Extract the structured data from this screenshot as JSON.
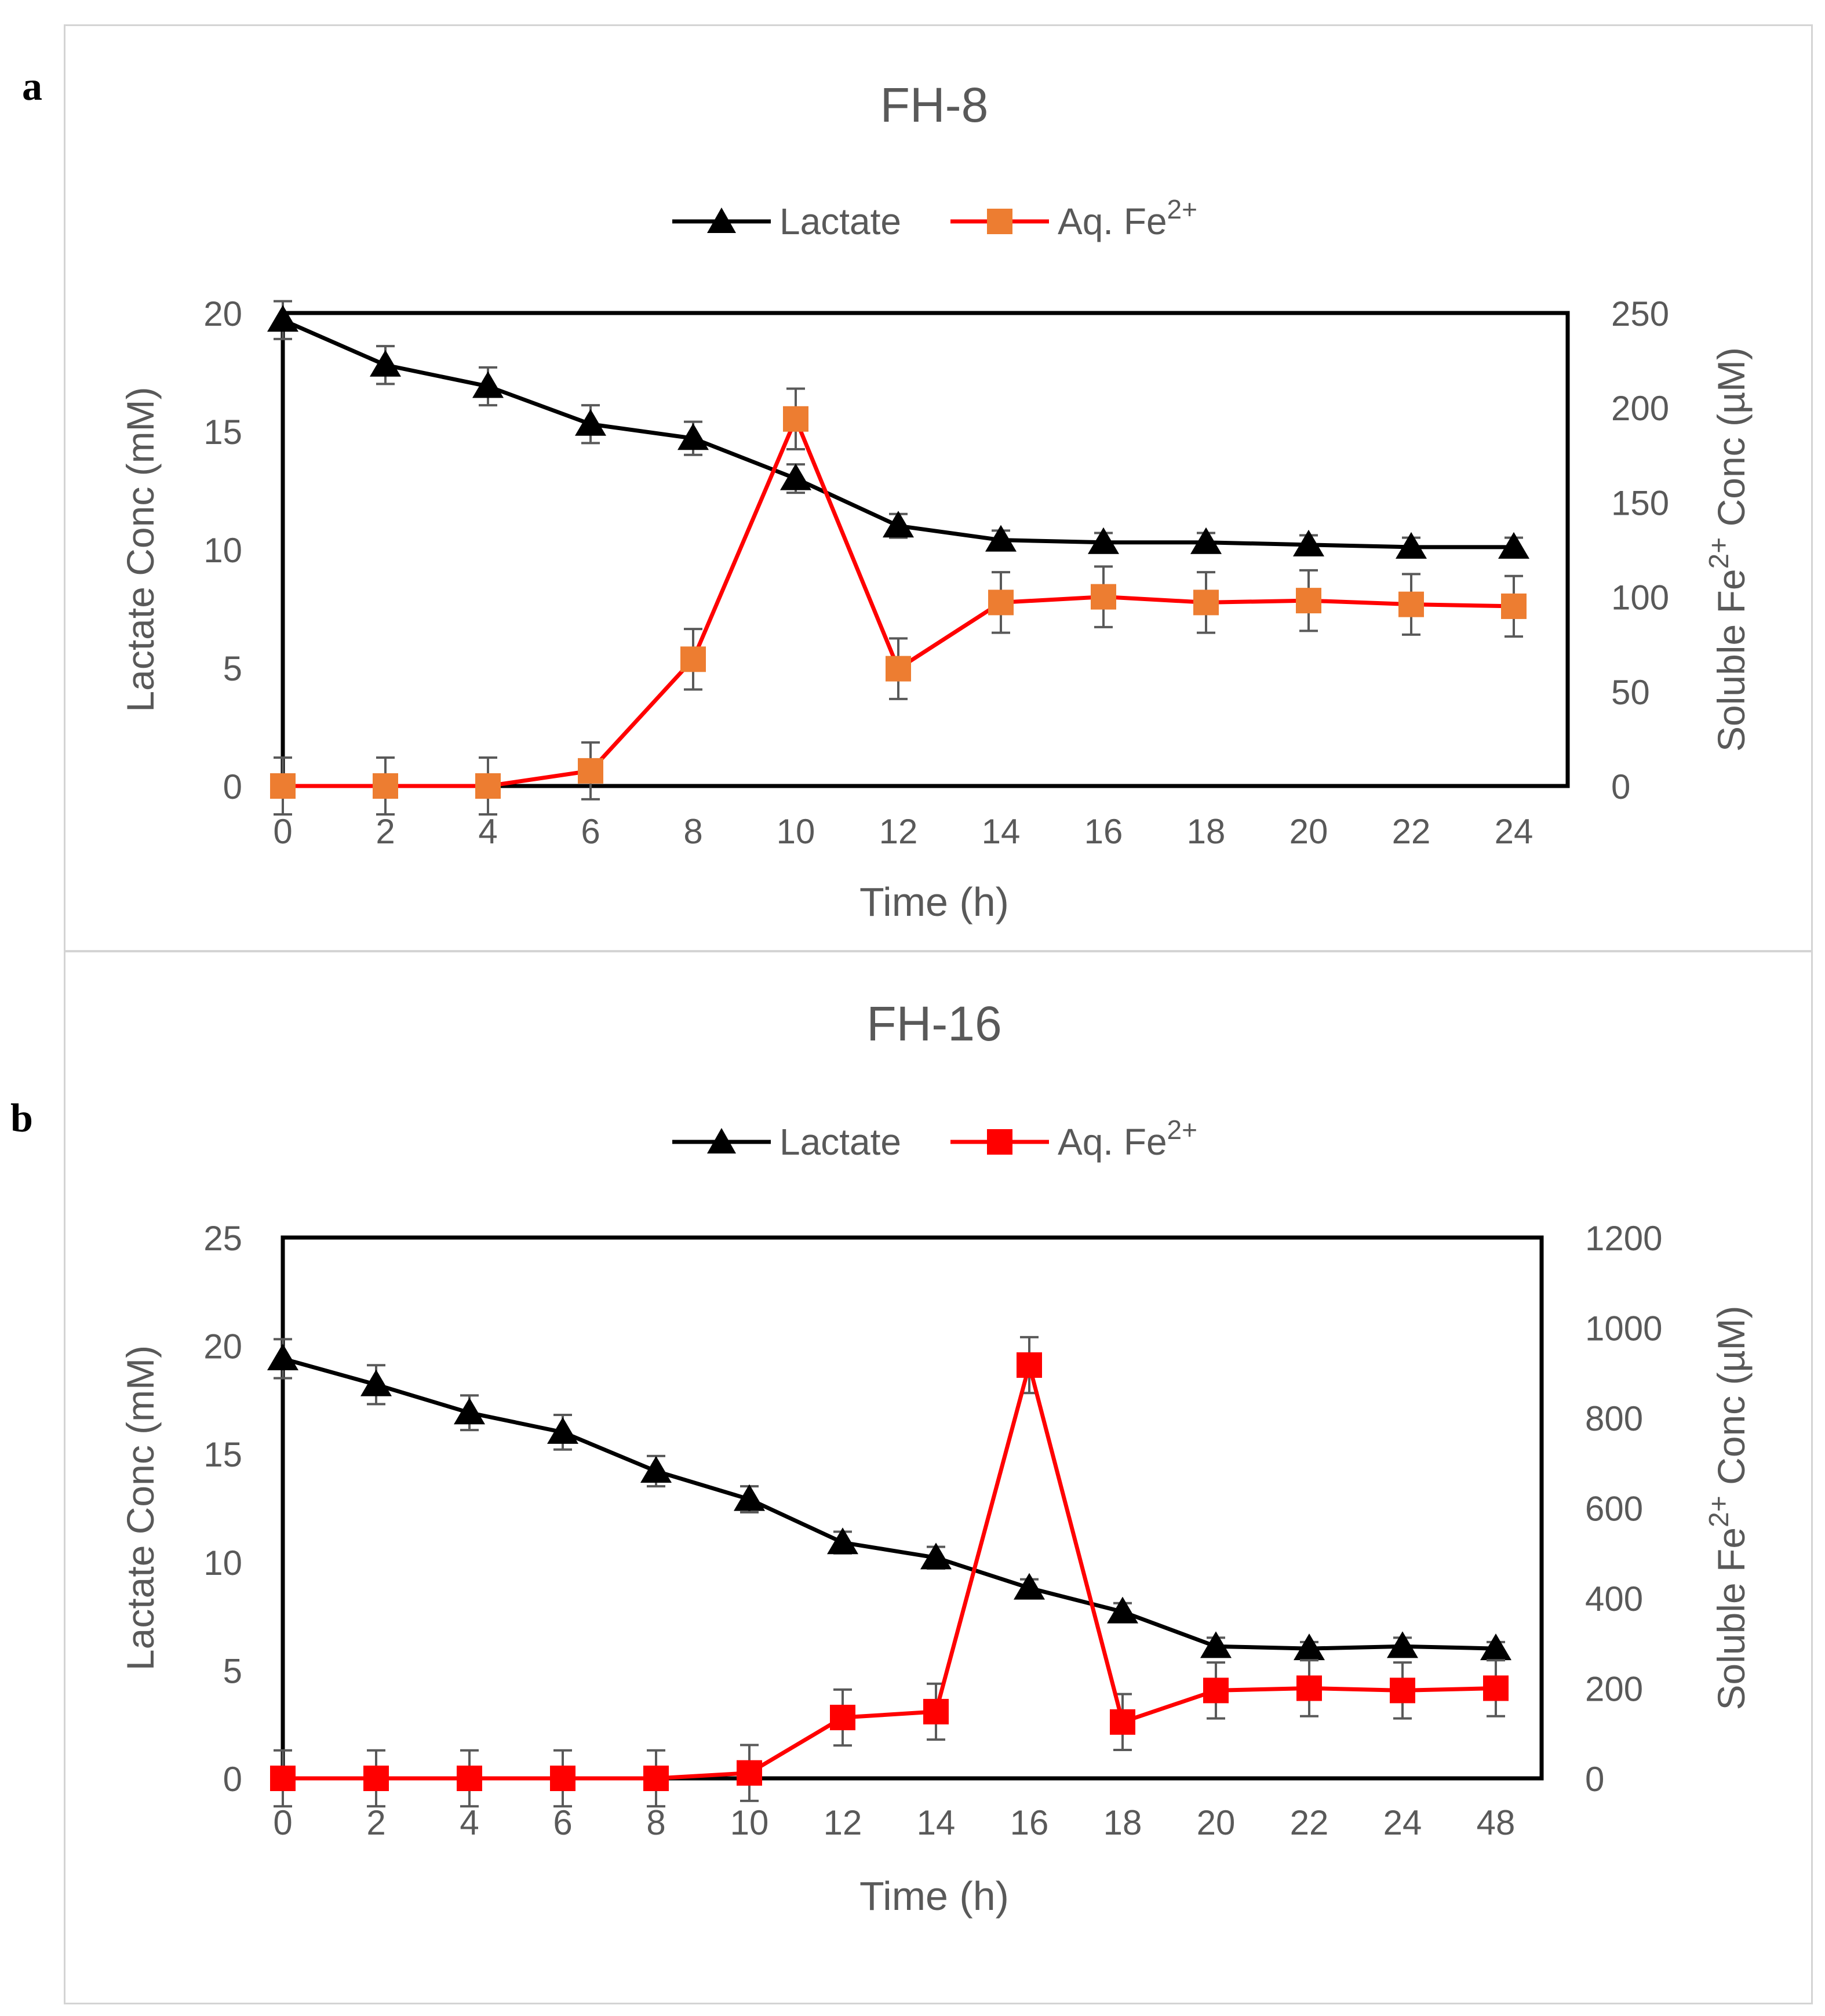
{
  "panels": [
    {
      "letter": "a"
    },
    {
      "letter": "b"
    }
  ],
  "chart_data": [
    {
      "type": "line",
      "title": "FH-8",
      "xlabel": "Time (h)",
      "ylabel": "Lactate Conc (mM)",
      "y2label_prefix": "Soluble Fe",
      "y2label_sup": "2+",
      "y2label_suffix": " Conc (µM)",
      "categories": [
        "0",
        "2",
        "4",
        "6",
        "8",
        "10",
        "12",
        "14",
        "16",
        "18",
        "20",
        "22",
        "24"
      ],
      "ylim": [
        0,
        20
      ],
      "yticks": [
        0,
        5,
        10,
        15,
        20
      ],
      "y2lim": [
        0,
        250
      ],
      "y2ticks": [
        0,
        50,
        100,
        150,
        200,
        250
      ],
      "series": [
        {
          "name": "Lactate",
          "legend_label": "Lactate",
          "axis": "left",
          "marker": "triangle",
          "line_color": "#000000",
          "marker_color": "#000000",
          "values": [
            19.7,
            17.8,
            16.9,
            15.3,
            14.7,
            13.0,
            11.0,
            10.4,
            10.3,
            10.3,
            10.2,
            10.1,
            10.1
          ],
          "errors": [
            0.8,
            0.8,
            0.8,
            0.8,
            0.7,
            0.6,
            0.5,
            0.4,
            0.4,
            0.4,
            0.4,
            0.4,
            0.4
          ]
        },
        {
          "name": "Aq. Fe2+",
          "legend_label": "Aq. Fe",
          "legend_sup": "2+",
          "axis": "right",
          "marker": "square",
          "line_color": "#ff0000",
          "marker_color": "#ed7d31",
          "values": [
            0,
            0,
            0,
            8,
            67,
            194,
            62,
            97,
            100,
            97,
            98,
            96,
            95
          ],
          "errors": [
            15,
            15,
            15,
            15,
            16,
            16,
            16,
            16,
            16,
            16,
            16,
            16,
            16
          ]
        }
      ]
    },
    {
      "type": "line",
      "title": "FH-16",
      "xlabel": "Time (h)",
      "ylabel": "Lactate Conc (mM)",
      "y2label_prefix": "Soluble Fe",
      "y2label_sup": "2+",
      "y2label_suffix": " Conc (µM)",
      "categories": [
        "0",
        "2",
        "4",
        "6",
        "8",
        "10",
        "12",
        "14",
        "16",
        "18",
        "20",
        "22",
        "24",
        "48"
      ],
      "ylim": [
        0,
        25
      ],
      "yticks": [
        0,
        5,
        10,
        15,
        20,
        25
      ],
      "y2lim": [
        0,
        1200
      ],
      "y2ticks": [
        0,
        200,
        400,
        600,
        800,
        1000,
        1200
      ],
      "series": [
        {
          "name": "Lactate",
          "legend_label": "Lactate",
          "axis": "left",
          "marker": "triangle",
          "line_color": "#000000",
          "marker_color": "#000000",
          "values": [
            19.4,
            18.2,
            16.9,
            16.0,
            14.2,
            12.9,
            10.9,
            10.2,
            8.8,
            7.7,
            6.1,
            6.0,
            6.1,
            6.0
          ],
          "errors": [
            0.9,
            0.9,
            0.8,
            0.8,
            0.7,
            0.6,
            0.5,
            0.5,
            0.4,
            0.4,
            0.4,
            0.3,
            0.4,
            0.3
          ]
        },
        {
          "name": "Aq. Fe2+",
          "legend_label": "Aq. Fe",
          "legend_sup": "2+",
          "axis": "right",
          "marker": "square",
          "line_color": "#ff0000",
          "marker_color": "#ff0000",
          "values": [
            0,
            0,
            0,
            0,
            0,
            12,
            135,
            148,
            917,
            125,
            195,
            200,
            195,
            200
          ],
          "errors": [
            62,
            62,
            62,
            62,
            62,
            62,
            62,
            62,
            62,
            62,
            62,
            62,
            62,
            62
          ]
        }
      ]
    }
  ]
}
